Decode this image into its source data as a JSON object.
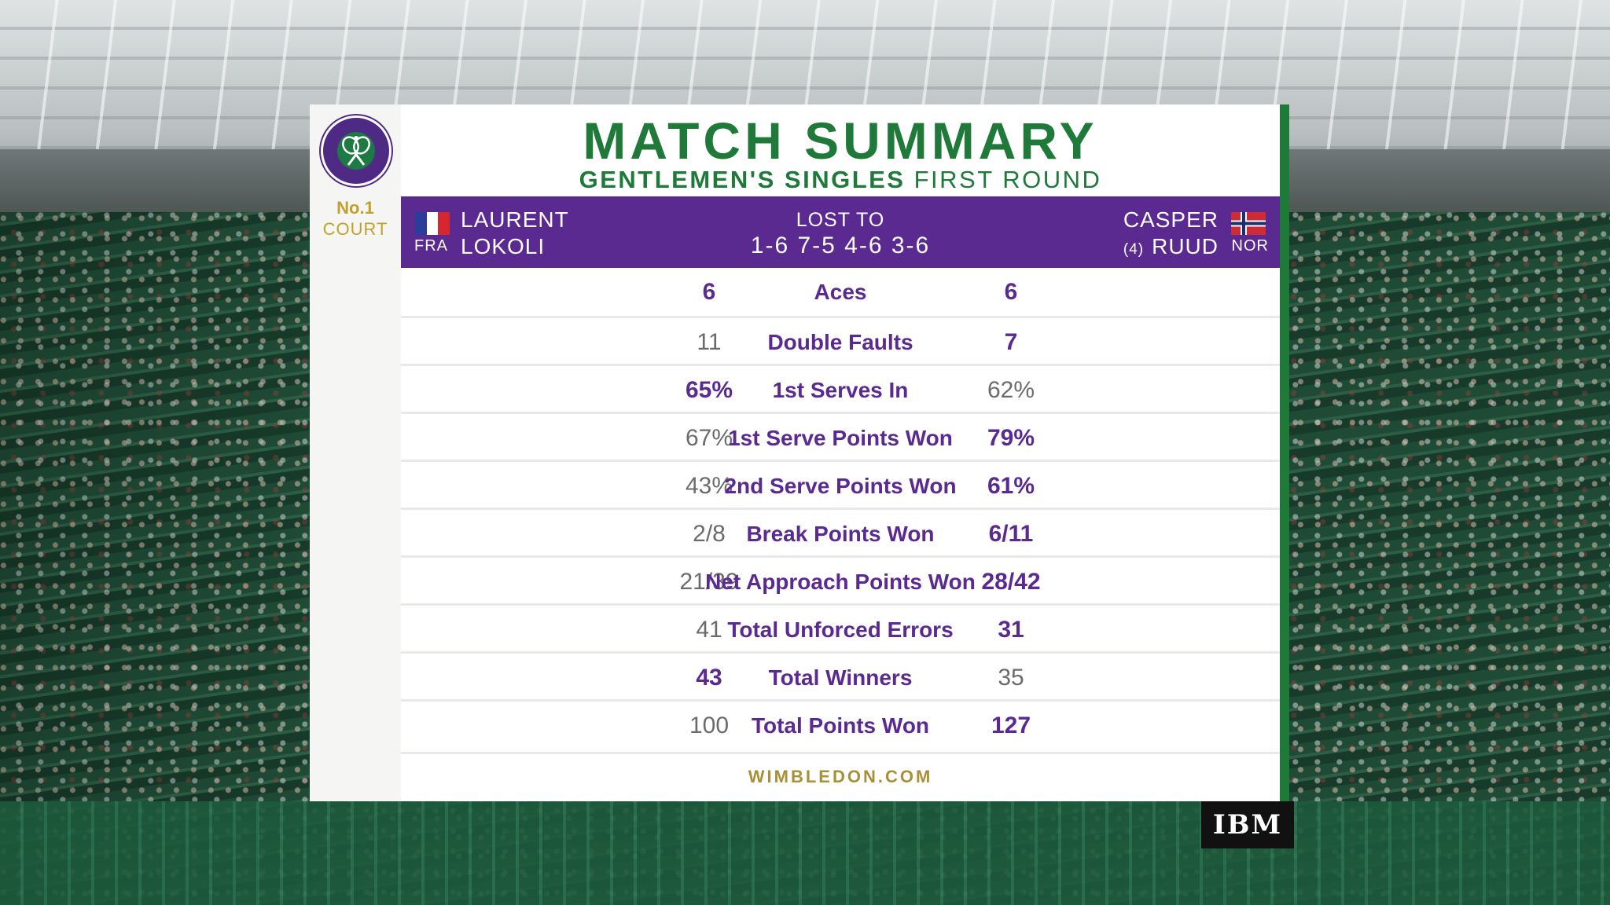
{
  "header": {
    "title": "MATCH SUMMARY",
    "subtitle_bold": "GENTLEMEN'S SINGLES",
    "subtitle_light": "FIRST ROUND"
  },
  "court": {
    "number": "No.1",
    "label": "COURT"
  },
  "players": {
    "left": {
      "first": "LAURENT",
      "last": "LOKOLI",
      "country": "FRA",
      "flag": "france-flag-icon"
    },
    "right": {
      "first": "CASPER",
      "last": "RUUD",
      "seed": "(4)",
      "country": "NOR",
      "flag": "norway-flag-icon"
    }
  },
  "result": {
    "label": "LOST TO",
    "score": "1-6 7-5 4-6 3-6"
  },
  "stats": [
    {
      "label": "Aces",
      "left": "6",
      "right": "6",
      "winner": "both"
    },
    {
      "label": "Double Faults",
      "left": "11",
      "right": "7",
      "winner": "right"
    },
    {
      "label": "1st Serves In",
      "left": "65%",
      "right": "62%",
      "winner": "left"
    },
    {
      "label": "1st Serve Points Won",
      "left": "67%",
      "right": "79%",
      "winner": "right"
    },
    {
      "label": "2nd Serve Points Won",
      "left": "43%",
      "right": "61%",
      "winner": "right"
    },
    {
      "label": "Break Points Won",
      "left": "2/8",
      "right": "6/11",
      "winner": "right"
    },
    {
      "label": "Net Approach Points Won",
      "left": "21/39",
      "right": "28/42",
      "winner": "right"
    },
    {
      "label": "Total Unforced Errors",
      "left": "41",
      "right": "31",
      "winner": "right"
    },
    {
      "label": "Total Winners",
      "left": "43",
      "right": "35",
      "winner": "left"
    },
    {
      "label": "Total Points Won",
      "left": "100",
      "right": "127",
      "winner": "right"
    }
  ],
  "footer": {
    "site": "WIMBLEDON.COM"
  },
  "sponsor": {
    "name": "IBM"
  },
  "colors": {
    "purple": "#5a2a91",
    "green": "#1f7a3a",
    "gold": "#a99036",
    "grey_text": "#6b6b6b"
  },
  "icons": {
    "logo": "wimbledon-crossed-rackets-icon"
  }
}
